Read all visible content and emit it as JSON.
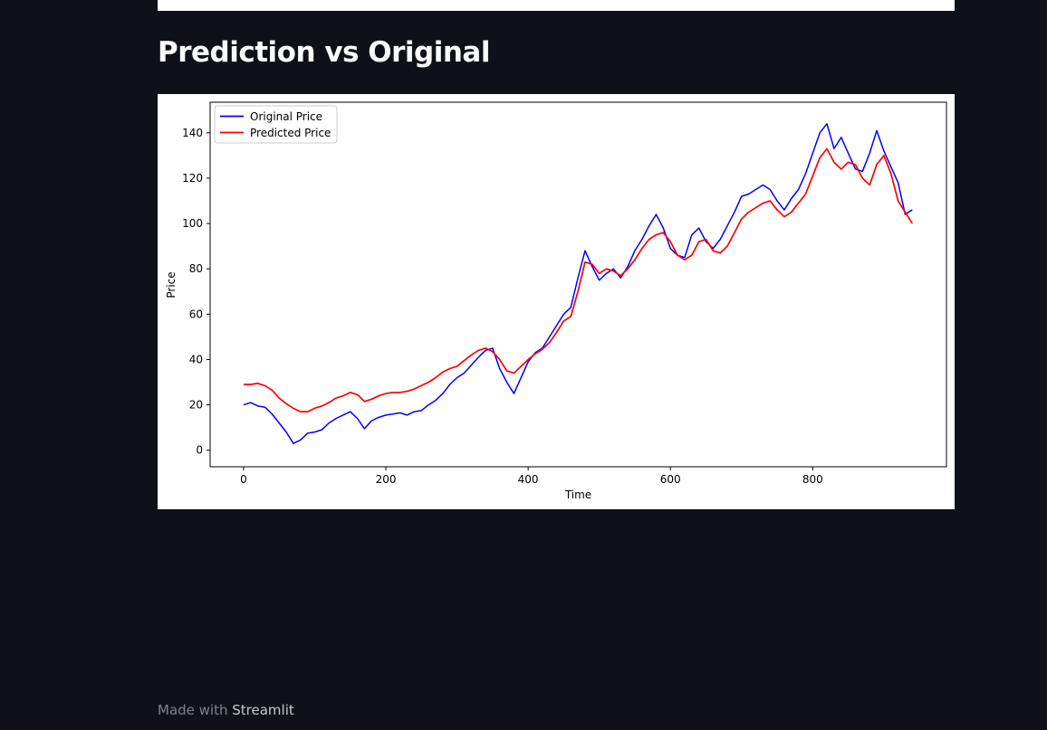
{
  "page": {
    "title": "Prediction vs Original",
    "footer_prefix": "Made with",
    "footer_brand": "Streamlit"
  },
  "colors": {
    "background": "#0e1117",
    "original": "#0000ff",
    "predicted": "#ff0000"
  },
  "chart_data": {
    "type": "line",
    "title": "",
    "xlabel": "Time",
    "ylabel": "Price",
    "xlim": [
      -47,
      988
    ],
    "ylim": [
      -7.3,
      153.5
    ],
    "xticks": [
      0,
      200,
      400,
      600,
      800
    ],
    "yticks": [
      0,
      20,
      40,
      60,
      80,
      100,
      120,
      140
    ],
    "grid": false,
    "legend_position": "top-left",
    "series": [
      {
        "name": "Original Price",
        "color": "#0000ff",
        "x": [
          0,
          10,
          20,
          30,
          40,
          50,
          60,
          70,
          80,
          90,
          100,
          110,
          120,
          130,
          140,
          150,
          160,
          170,
          180,
          190,
          200,
          210,
          220,
          230,
          240,
          250,
          260,
          270,
          280,
          290,
          300,
          310,
          320,
          330,
          340,
          350,
          360,
          370,
          380,
          390,
          400,
          410,
          420,
          430,
          440,
          450,
          460,
          470,
          480,
          490,
          500,
          510,
          520,
          530,
          540,
          550,
          560,
          570,
          580,
          590,
          600,
          610,
          620,
          630,
          640,
          650,
          660,
          670,
          680,
          690,
          700,
          710,
          720,
          730,
          740,
          750,
          760,
          770,
          780,
          790,
          800,
          810,
          820,
          830,
          840,
          850,
          860,
          870,
          880,
          890,
          900,
          910,
          920,
          930,
          940
        ],
        "y": [
          20,
          21,
          19.5,
          19,
          16,
          12,
          8,
          3,
          4.5,
          7.5,
          8,
          9,
          12,
          14,
          15.5,
          17,
          14,
          9.5,
          13,
          14.5,
          15.5,
          16,
          16.5,
          15.5,
          17,
          17.5,
          20,
          22,
          25,
          29,
          32,
          34,
          37.5,
          41,
          44,
          45,
          36,
          30,
          25,
          32,
          39,
          43,
          45,
          50,
          55,
          60,
          63,
          76,
          88,
          81,
          75,
          78,
          80,
          76,
          81,
          88,
          93,
          99,
          104,
          98,
          89,
          86,
          85,
          95,
          98,
          92,
          89,
          93,
          99,
          105,
          112,
          113,
          115,
          117,
          115,
          110,
          106,
          111,
          115,
          122,
          131,
          140,
          144,
          133,
          138,
          131,
          124,
          123,
          131,
          141,
          132,
          125,
          118,
          104,
          106
        ]
      },
      {
        "name": "Predicted Price",
        "color": "#ff0000",
        "x": [
          0,
          10,
          20,
          30,
          40,
          50,
          60,
          70,
          80,
          90,
          100,
          110,
          120,
          130,
          140,
          150,
          160,
          170,
          180,
          190,
          200,
          210,
          220,
          230,
          240,
          250,
          260,
          270,
          280,
          290,
          300,
          310,
          320,
          330,
          340,
          350,
          360,
          370,
          380,
          390,
          400,
          410,
          420,
          430,
          440,
          450,
          460,
          470,
          480,
          490,
          500,
          510,
          520,
          530,
          540,
          550,
          560,
          570,
          580,
          590,
          600,
          610,
          620,
          630,
          640,
          650,
          660,
          670,
          680,
          690,
          700,
          710,
          720,
          730,
          740,
          750,
          760,
          770,
          780,
          790,
          800,
          810,
          820,
          830,
          840,
          850,
          860,
          870,
          880,
          890,
          900,
          910,
          920,
          930,
          940
        ],
        "y": [
          29,
          29,
          29.5,
          28.5,
          26.5,
          23,
          20.5,
          18.5,
          17,
          17,
          18.5,
          19.5,
          21,
          23,
          24,
          25.5,
          24.5,
          21.5,
          22.5,
          24,
          25,
          25.5,
          25.5,
          26,
          27,
          28.5,
          30,
          32,
          34.5,
          36,
          37,
          39.5,
          42,
          44,
          45,
          43.5,
          40,
          35,
          34,
          37,
          40,
          42.5,
          44.5,
          47.5,
          52,
          57,
          59,
          70,
          83,
          82,
          78,
          80,
          79,
          77,
          80,
          84,
          89,
          93,
          95,
          96,
          92,
          86,
          84,
          86,
          92,
          93,
          88,
          87,
          90,
          96,
          102,
          105,
          107,
          109,
          110,
          106,
          103,
          105,
          109,
          113,
          121,
          129,
          133,
          127,
          124,
          127,
          126,
          120,
          117,
          126,
          130,
          122,
          110,
          105,
          100
        ]
      }
    ]
  }
}
